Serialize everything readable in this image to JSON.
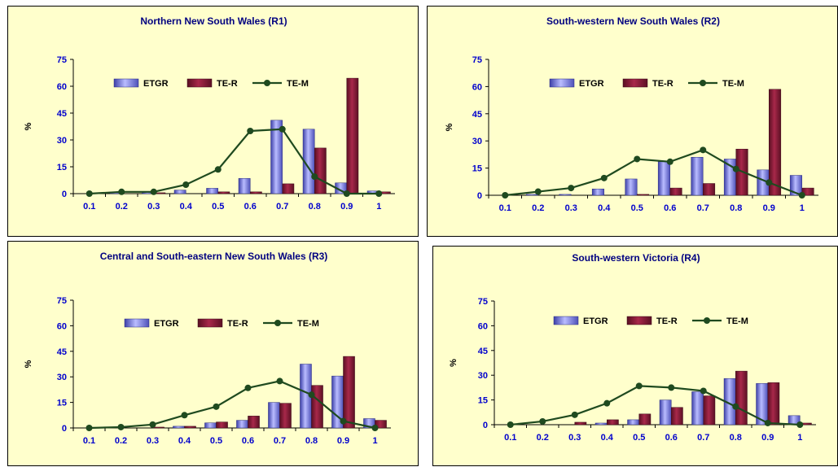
{
  "colors": {
    "etgr_fill": "#8a8ee6",
    "ter_fill": "#8b1a3a",
    "tem_line": "#1f4a1f",
    "tick_text": "#0000cc",
    "title_text": "#000080",
    "background": "#ffffcc"
  },
  "chart_data": [
    {
      "type": "bar+line",
      "title": "Northern New South Wales (R1)",
      "ylabel": "%",
      "xlabel": "",
      "ylim": [
        0,
        75
      ],
      "yticks": [
        "0",
        "15",
        "30",
        "45",
        "60",
        "75"
      ],
      "categories": [
        "0.1",
        "0.2",
        "0.3",
        "0.4",
        "0.5",
        "0.6",
        "0.7",
        "0.8",
        "0.9",
        "1"
      ],
      "legend": {
        "position": "top-center"
      },
      "series": [
        {
          "name": "ETGR",
          "kind": "bar",
          "values": [
            0,
            1,
            1,
            2,
            3,
            8.5,
            41,
            36,
            6,
            1.5
          ]
        },
        {
          "name": "TE-R",
          "kind": "bar",
          "values": [
            0,
            0,
            0.5,
            0,
            1,
            1,
            5.5,
            25.5,
            64.5,
            1
          ]
        },
        {
          "name": "TE-M",
          "kind": "line",
          "values": [
            0,
            1,
            1,
            5,
            13.5,
            35,
            36,
            9.5,
            0,
            0
          ]
        }
      ]
    },
    {
      "type": "bar+line",
      "title": "South-western New South Wales (R2)",
      "ylabel": "%",
      "xlabel": "",
      "ylim": [
        0,
        75
      ],
      "yticks": [
        "0",
        "15",
        "30",
        "45",
        "60",
        "75"
      ],
      "categories": [
        "0.1",
        "0.2",
        "0.3",
        "0.4",
        "0.5",
        "0.6",
        "0.7",
        "0.8",
        "0.9",
        "1"
      ],
      "legend": {
        "position": "top-center"
      },
      "series": [
        {
          "name": "ETGR",
          "kind": "bar",
          "values": [
            0,
            0.5,
            0.5,
            3.5,
            9,
            18.5,
            21,
            20,
            14,
            11
          ]
        },
        {
          "name": "TE-R",
          "kind": "bar",
          "values": [
            0,
            0,
            0,
            0,
            0.5,
            4,
            6.5,
            25.5,
            58.5,
            4
          ]
        },
        {
          "name": "TE-M",
          "kind": "line",
          "values": [
            0,
            2,
            4,
            9.5,
            20,
            18.5,
            25,
            14.5,
            7,
            0
          ]
        }
      ]
    },
    {
      "type": "bar+line",
      "title": "Central and South-eastern New South Wales (R3)",
      "ylabel": "%",
      "xlabel": "",
      "ylim": [
        0,
        75
      ],
      "yticks": [
        "0",
        "15",
        "30",
        "45",
        "60",
        "75"
      ],
      "categories": [
        "0.1",
        "0.2",
        "0.3",
        "0.4",
        "0.5",
        "0.6",
        "0.7",
        "0.8",
        "0.9",
        "1"
      ],
      "legend": {
        "position": "top-center"
      },
      "series": [
        {
          "name": "ETGR",
          "kind": "bar",
          "values": [
            0,
            0,
            0,
            1,
            3,
            4.5,
            15,
            37.5,
            30.5,
            5.5
          ]
        },
        {
          "name": "TE-R",
          "kind": "bar",
          "values": [
            0,
            0,
            0.5,
            1,
            3.5,
            7,
            14.5,
            25,
            42,
            4.5
          ]
        },
        {
          "name": "TE-M",
          "kind": "line",
          "values": [
            0,
            0.5,
            2,
            7.5,
            12.5,
            23.5,
            27.5,
            19.5,
            4,
            0
          ]
        }
      ]
    },
    {
      "type": "bar+line",
      "title": "South-western Victoria (R4)",
      "ylabel": "%",
      "xlabel": "",
      "ylim": [
        0,
        75
      ],
      "yticks": [
        "0",
        "15",
        "30",
        "45",
        "60",
        "75"
      ],
      "categories": [
        "0.1",
        "0.2",
        "0.3",
        "0.4",
        "0.5",
        "0.6",
        "0.7",
        "0.8",
        "0.9",
        "1"
      ],
      "legend": {
        "position": "top-center"
      },
      "series": [
        {
          "name": "ETGR",
          "kind": "bar",
          "values": [
            0,
            0,
            0,
            1,
            3,
            15,
            20,
            28,
            25,
            5.5
          ]
        },
        {
          "name": "TE-R",
          "kind": "bar",
          "values": [
            0,
            0,
            1.5,
            3,
            6.5,
            10.5,
            17.5,
            32.5,
            25.5,
            1
          ]
        },
        {
          "name": "TE-M",
          "kind": "line",
          "values": [
            0,
            2,
            6,
            13,
            23.5,
            22.5,
            20.5,
            11,
            1,
            0
          ]
        }
      ]
    }
  ]
}
